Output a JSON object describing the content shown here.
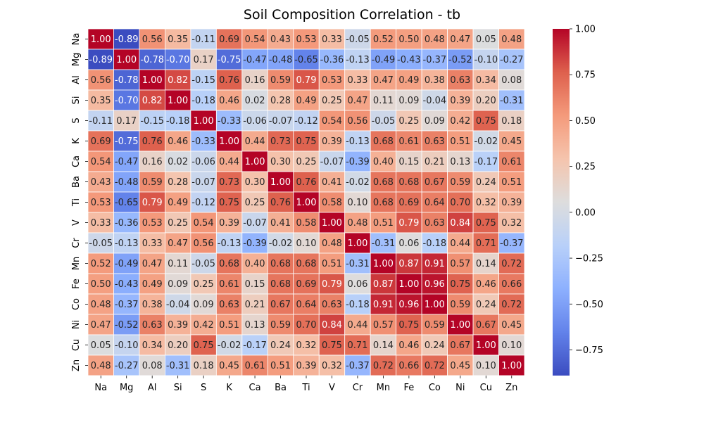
{
  "chart_data": {
    "type": "heatmap",
    "title": "Soil Composition Correlation - tb",
    "labels": [
      "Na",
      "Mg",
      "Al",
      "Si",
      "S",
      "K",
      "Ca",
      "Ba",
      "Ti",
      "V",
      "Cr",
      "Mn",
      "Fe",
      "Co",
      "Ni",
      "Cu",
      "Zn"
    ],
    "matrix": [
      [
        1.0,
        -0.89,
        0.56,
        0.35,
        -0.11,
        0.69,
        0.54,
        0.43,
        0.53,
        0.33,
        -0.05,
        0.52,
        0.5,
        0.48,
        0.47,
        0.05,
        0.48
      ],
      [
        -0.89,
        1.0,
        -0.78,
        -0.7,
        0.17,
        -0.75,
        -0.47,
        -0.48,
        -0.65,
        -0.36,
        -0.13,
        -0.49,
        -0.43,
        -0.37,
        -0.52,
        -0.1,
        -0.27
      ],
      [
        0.56,
        -0.78,
        1.0,
        0.82,
        -0.15,
        0.76,
        0.16,
        0.59,
        0.79,
        0.53,
        0.33,
        0.47,
        0.49,
        0.38,
        0.63,
        0.34,
        0.08
      ],
      [
        0.35,
        -0.7,
        0.82,
        1.0,
        -0.18,
        0.46,
        0.02,
        0.28,
        0.49,
        0.25,
        0.47,
        0.11,
        0.09,
        -0.04,
        0.39,
        0.2,
        -0.31
      ],
      [
        -0.11,
        0.17,
        -0.15,
        -0.18,
        1.0,
        -0.33,
        -0.06,
        -0.07,
        -0.12,
        0.54,
        0.56,
        -0.05,
        0.25,
        0.09,
        0.42,
        0.75,
        0.18
      ],
      [
        0.69,
        -0.75,
        0.76,
        0.46,
        -0.33,
        1.0,
        0.44,
        0.73,
        0.75,
        0.39,
        -0.13,
        0.68,
        0.61,
        0.63,
        0.51,
        -0.02,
        0.45
      ],
      [
        0.54,
        -0.47,
        0.16,
        0.02,
        -0.06,
        0.44,
        1.0,
        0.3,
        0.25,
        -0.07,
        -0.39,
        0.4,
        0.15,
        0.21,
        0.13,
        -0.17,
        0.61
      ],
      [
        0.43,
        -0.48,
        0.59,
        0.28,
        -0.07,
        0.73,
        0.3,
        1.0,
        0.76,
        0.41,
        -0.02,
        0.68,
        0.68,
        0.67,
        0.59,
        0.24,
        0.51
      ],
      [
        0.53,
        -0.65,
        0.79,
        0.49,
        -0.12,
        0.75,
        0.25,
        0.76,
        1.0,
        0.58,
        0.1,
        0.68,
        0.69,
        0.64,
        0.7,
        0.32,
        0.39
      ],
      [
        0.33,
        -0.36,
        0.53,
        0.25,
        0.54,
        0.39,
        -0.07,
        0.41,
        0.58,
        1.0,
        0.48,
        0.51,
        0.79,
        0.63,
        0.84,
        0.75,
        0.32
      ],
      [
        -0.05,
        -0.13,
        0.33,
        0.47,
        0.56,
        -0.13,
        -0.39,
        -0.02,
        0.1,
        0.48,
        1.0,
        -0.31,
        0.06,
        -0.18,
        0.44,
        0.71,
        -0.37
      ],
      [
        0.52,
        -0.49,
        0.47,
        0.11,
        -0.05,
        0.68,
        0.4,
        0.68,
        0.68,
        0.51,
        -0.31,
        1.0,
        0.87,
        0.91,
        0.57,
        0.14,
        0.72
      ],
      [
        0.5,
        -0.43,
        0.49,
        0.09,
        0.25,
        0.61,
        0.15,
        0.68,
        0.69,
        0.79,
        0.06,
        0.87,
        1.0,
        0.96,
        0.75,
        0.46,
        0.66
      ],
      [
        0.48,
        -0.37,
        0.38,
        -0.04,
        0.09,
        0.63,
        0.21,
        0.67,
        0.64,
        0.63,
        -0.18,
        0.91,
        0.96,
        1.0,
        0.59,
        0.24,
        0.72
      ],
      [
        0.47,
        -0.52,
        0.63,
        0.39,
        0.42,
        0.51,
        0.13,
        0.59,
        0.7,
        0.84,
        0.44,
        0.57,
        0.75,
        0.59,
        1.0,
        0.67,
        0.45
      ],
      [
        0.05,
        -0.1,
        0.34,
        0.2,
        0.75,
        -0.02,
        -0.17,
        0.24,
        0.32,
        0.75,
        0.71,
        0.14,
        0.46,
        0.24,
        0.67,
        1.0,
        0.1
      ],
      [
        0.48,
        -0.27,
        0.08,
        -0.31,
        0.18,
        0.45,
        0.61,
        0.51,
        0.39,
        0.32,
        -0.37,
        0.72,
        0.66,
        0.72,
        0.45,
        0.1,
        1.0
      ]
    ],
    "colorbar": {
      "min": -0.89,
      "max": 1.0,
      "ticks": [
        1.0,
        0.75,
        0.5,
        0.25,
        0.0,
        -0.25,
        -0.5,
        -0.75
      ],
      "tick_labels": [
        "1.00",
        "0.75",
        "0.50",
        "0.25",
        "0.00",
        "−0.25",
        "−0.50",
        "−0.75"
      ]
    },
    "colormap": "coolwarm",
    "grid_lines": true
  }
}
